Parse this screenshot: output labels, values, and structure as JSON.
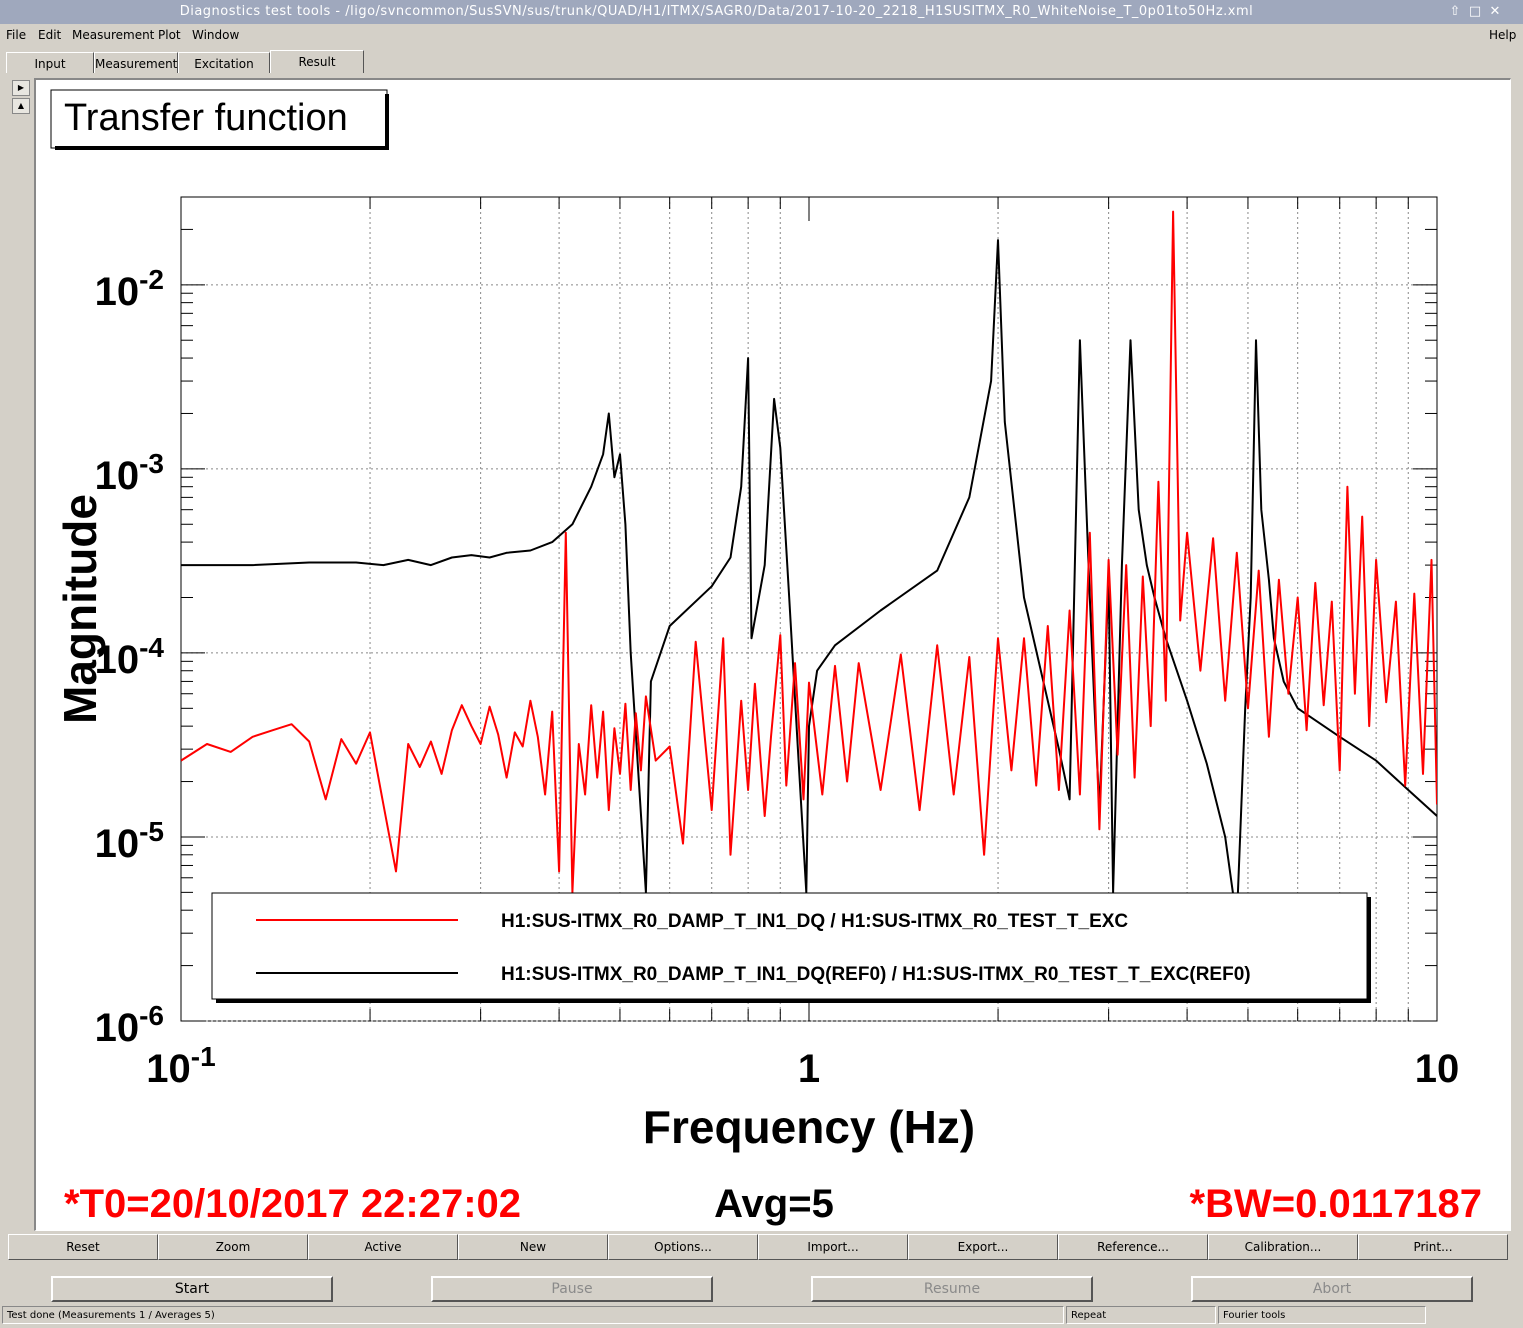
{
  "window": {
    "title": "Diagnostics test tools - /ligo/svncommon/SusSVN/sus/trunk/QUAD/H1/ITMX/SAGR0/Data/2017-10-20_2218_H1SUSITMX_R0_WhiteNoise_T_0p01to50Hz.xml",
    "controls": [
      "⇧",
      "□",
      "✕"
    ]
  },
  "menu": {
    "file": "File",
    "edit": "Edit",
    "measurement": "Measurement",
    "plot": "Plot",
    "window": "Window",
    "help": "Help"
  },
  "tabs": [
    {
      "label": "Input"
    },
    {
      "label": "Measurement"
    },
    {
      "label": "Excitation"
    },
    {
      "label": "Result",
      "active": true
    }
  ],
  "plot": {
    "title": "Transfer function",
    "t0": "*T0=20/10/2017 22:27:02",
    "avg": "Avg=5",
    "bw": "*BW=0.0117187"
  },
  "chart_data": {
    "type": "line",
    "title": "Transfer function",
    "xlabel": "Frequency (Hz)",
    "ylabel": "Magnitude",
    "xscale": "log",
    "yscale": "log",
    "xlim": [
      0.1,
      10
    ],
    "ylim": [
      1e-06,
      0.03
    ],
    "x_ticks": [
      {
        "v": 0.1,
        "label": "10",
        "exp": "-1"
      },
      {
        "v": 1,
        "label": "1",
        "exp": ""
      },
      {
        "v": 10,
        "label": "10",
        "exp": ""
      }
    ],
    "y_ticks": [
      {
        "v": 0.01,
        "label": "10",
        "exp": "-2"
      },
      {
        "v": 0.001,
        "label": "10",
        "exp": "-3"
      },
      {
        "v": 0.0001,
        "label": "10",
        "exp": "-4"
      },
      {
        "v": 1e-05,
        "label": "10",
        "exp": "-5"
      },
      {
        "v": 1e-06,
        "label": "10",
        "exp": "-6"
      }
    ],
    "grid": true,
    "legend_position": "bottom",
    "series": [
      {
        "name": "H1:SUS-ITMX_R0_DAMP_T_IN1_DQ / H1:SUS-ITMX_R0_TEST_T_EXC",
        "color": "#ff0000",
        "x": [
          0.1,
          0.11,
          0.12,
          0.13,
          0.14,
          0.15,
          0.16,
          0.17,
          0.18,
          0.19,
          0.2,
          0.21,
          0.22,
          0.23,
          0.24,
          0.25,
          0.26,
          0.27,
          0.28,
          0.29,
          0.3,
          0.31,
          0.32,
          0.33,
          0.34,
          0.35,
          0.36,
          0.37,
          0.38,
          0.39,
          0.4,
          0.41,
          0.42,
          0.43,
          0.44,
          0.45,
          0.46,
          0.47,
          0.48,
          0.49,
          0.5,
          0.51,
          0.52,
          0.53,
          0.54,
          0.55,
          0.57,
          0.6,
          0.63,
          0.66,
          0.7,
          0.73,
          0.75,
          0.78,
          0.8,
          0.82,
          0.85,
          0.87,
          0.9,
          0.92,
          0.95,
          0.98,
          1.0,
          1.05,
          1.1,
          1.15,
          1.2,
          1.3,
          1.4,
          1.5,
          1.6,
          1.7,
          1.8,
          1.9,
          2.0,
          2.1,
          2.2,
          2.3,
          2.4,
          2.5,
          2.6,
          2.7,
          2.8,
          2.9,
          3.0,
          3.1,
          3.2,
          3.3,
          3.4,
          3.5,
          3.6,
          3.7,
          3.8,
          3.9,
          4.0,
          4.2,
          4.4,
          4.6,
          4.8,
          5.0,
          5.2,
          5.4,
          5.6,
          5.8,
          6.0,
          6.2,
          6.4,
          6.6,
          6.8,
          7.0,
          7.2,
          7.4,
          7.6,
          7.8,
          8.0,
          8.3,
          8.6,
          8.9,
          9.2,
          9.5,
          9.8,
          10.0
        ],
        "y": [
          2.6e-05,
          3.2e-05,
          2.9e-05,
          3.5e-05,
          3.8e-05,
          4.1e-05,
          3.3e-05,
          1.6e-05,
          3.4e-05,
          2.5e-05,
          3.7e-05,
          1.5e-05,
          6.5e-06,
          3.2e-05,
          2.4e-05,
          3.3e-05,
          2.2e-05,
          3.8e-05,
          5.2e-05,
          4e-05,
          3.2e-05,
          5.1e-05,
          3.6e-05,
          2.1e-05,
          3.7e-05,
          3.1e-05,
          5.5e-05,
          3.5e-05,
          1.7e-05,
          4.8e-05,
          6.5e-06,
          0.00045,
          5e-06,
          3.2e-05,
          1.7e-05,
          5.2e-05,
          2.1e-05,
          4.8e-05,
          1.4e-05,
          3.9e-05,
          2.2e-05,
          5.3e-05,
          1.8e-05,
          4.7e-05,
          2.3e-05,
          5.8e-05,
          2.6e-05,
          3.1e-05,
          9.2e-06,
          0.000115,
          1.4e-05,
          0.00012,
          8e-06,
          5.5e-05,
          1.8e-05,
          6.8e-05,
          1.3e-05,
          3.5e-05,
          0.000125,
          1.9e-05,
          8.8e-05,
          1.6e-05,
          6.9e-05,
          1.7e-05,
          8.5e-05,
          2e-05,
          8.8e-05,
          1.8e-05,
          9.8e-05,
          1.4e-05,
          0.00011,
          1.7e-05,
          9.5e-05,
          8e-06,
          0.00012,
          2.3e-05,
          0.00012,
          1.9e-05,
          0.00014,
          1.8e-05,
          0.00017,
          1.7e-05,
          0.00045,
          1.1e-05,
          0.00032,
          2.8e-05,
          0.0003,
          2.1e-05,
          0.00026,
          4e-05,
          0.00085,
          5.5e-05,
          0.025,
          0.00015,
          0.00045,
          8e-05,
          0.00042,
          5.5e-05,
          0.00035,
          5e-05,
          0.00028,
          3.5e-05,
          0.00025,
          6e-05,
          0.0002,
          3.8e-05,
          0.00024,
          5.2e-05,
          0.00019,
          2.3e-05,
          0.0008,
          6e-05,
          0.00055,
          4e-05,
          0.00032,
          5.4e-05,
          0.00019,
          1.9e-05,
          0.00021,
          2.2e-05,
          0.00032,
          1.5e-05
        ]
      },
      {
        "name": "H1:SUS-ITMX_R0_DAMP_T_IN1_DQ(REF0) / H1:SUS-ITMX_R0_TEST_T_EXC(REF0)",
        "color": "#000000",
        "x": [
          0.1,
          0.13,
          0.16,
          0.19,
          0.21,
          0.23,
          0.25,
          0.27,
          0.29,
          0.31,
          0.33,
          0.36,
          0.39,
          0.42,
          0.45,
          0.47,
          0.48,
          0.49,
          0.5,
          0.51,
          0.52,
          0.55,
          0.56,
          0.6,
          0.7,
          0.75,
          0.78,
          0.8,
          0.81,
          0.85,
          0.88,
          0.9,
          0.93,
          0.96,
          0.99,
          1.0,
          1.03,
          1.1,
          1.3,
          1.6,
          1.8,
          1.95,
          2.0,
          2.05,
          2.2,
          2.5,
          2.6,
          2.7,
          2.8,
          2.85,
          2.9,
          3.0,
          3.05,
          3.15,
          3.25,
          3.35,
          3.45,
          3.55,
          3.7,
          4.0,
          4.3,
          4.6,
          4.8,
          4.95,
          5.05,
          5.15,
          5.25,
          5.4,
          5.5,
          5.7,
          6.0,
          7.0,
          8.0,
          9.0,
          10.0
        ],
        "y": [
          0.0003,
          0.0003,
          0.00031,
          0.00031,
          0.0003,
          0.00032,
          0.0003,
          0.00033,
          0.00034,
          0.00033,
          0.00035,
          0.00036,
          0.0004,
          0.0005,
          0.0008,
          0.0012,
          0.002,
          0.0009,
          0.0012,
          0.0005,
          0.0001,
          5e-06,
          7e-05,
          0.00014,
          0.00023,
          0.00033,
          0.0008,
          0.004,
          0.00012,
          0.0003,
          0.0024,
          0.0013,
          0.0002,
          3e-05,
          5e-06,
          4e-05,
          8e-05,
          0.00011,
          0.00017,
          0.00028,
          0.0007,
          0.003,
          0.0175,
          0.0018,
          0.0002,
          3e-05,
          1.6e-05,
          0.005,
          0.0002,
          5e-05,
          1.4e-05,
          0.00025,
          5e-06,
          0.0003,
          0.005,
          0.0006,
          0.0003,
          0.0002,
          0.00012,
          5.5e-05,
          2.5e-05,
          1e-05,
          3.5e-06,
          5e-05,
          0.0002,
          0.005,
          0.0006,
          0.00025,
          0.00012,
          7e-05,
          5e-05,
          3.5e-05,
          2.6e-05,
          1.8e-05,
          1.3e-05
        ]
      }
    ]
  },
  "buttons": {
    "reset": "Reset",
    "zoom": "Zoom",
    "active": "Active",
    "new": "New",
    "options": "Options...",
    "import": "Import...",
    "export": "Export...",
    "reference": "Reference...",
    "calibration": "Calibration...",
    "print": "Print..."
  },
  "controls": {
    "start": "Start",
    "pause": "Pause",
    "resume": "Resume",
    "abort": "Abort"
  },
  "status": {
    "main": "Test done (Measurements 1 / Averages 5)",
    "repeat": "Repeat",
    "tools": "Fourier tools"
  }
}
